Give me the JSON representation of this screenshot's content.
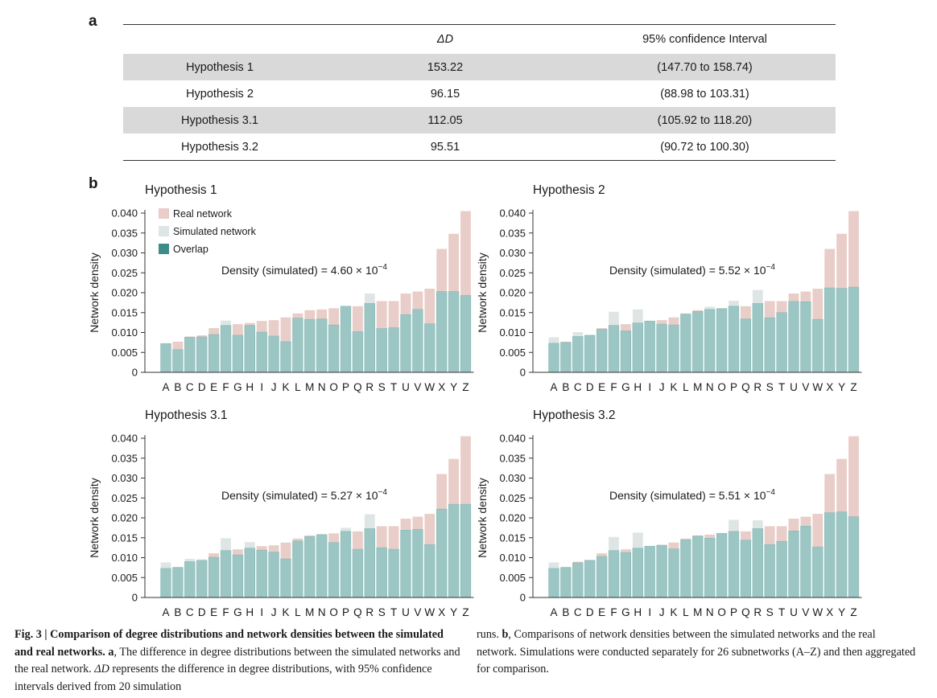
{
  "panel_a_letter": "a",
  "panel_b_letter": "b",
  "table": {
    "headers": [
      "",
      "ΔD",
      "95% confidence Interval"
    ],
    "rows": [
      [
        "Hypothesis 1",
        "153.22",
        "(147.70 to 158.74)"
      ],
      [
        "Hypothesis 2",
        "96.15",
        "(88.98 to 103.31)"
      ],
      [
        "Hypothesis 3.1",
        "112.05",
        "(105.92 to 118.20)"
      ],
      [
        "Hypothesis 3.2",
        "95.51",
        "(90.72 to 100.30)"
      ]
    ]
  },
  "legend": {
    "real": "Real network",
    "simulated": "Simulated network",
    "overlap": "Overlap"
  },
  "colors": {
    "real": "#e8cdc8",
    "simulated": "#dfe5e5",
    "overlap": "#9bc6c4",
    "overlap_legend": "#3d8c8a"
  },
  "ylabel": "Network density",
  "yticks": [
    "0",
    "0.005",
    "0.010",
    "0.015",
    "0.020",
    "0.025",
    "0.030",
    "0.035",
    "0.040"
  ],
  "chart_data": [
    {
      "type": "bar",
      "title": "Hypothesis 1",
      "annotation": "Density (simulated) = 4.60 × 10",
      "annotation_exp": "−4",
      "ylabel": "Network density",
      "ylim": [
        0,
        0.042
      ],
      "categories": [
        "A",
        "B",
        "C",
        "D",
        "E",
        "F",
        "G",
        "H",
        "I",
        "J",
        "K",
        "L",
        "M",
        "N",
        "O",
        "P",
        "Q",
        "R",
        "S",
        "T",
        "U",
        "V",
        "W",
        "X",
        "Y",
        "Z"
      ],
      "series": [
        {
          "name": "Real network",
          "values": [
            0.0073,
            0.0077,
            0.009,
            0.0093,
            0.0111,
            0.0118,
            0.0121,
            0.0124,
            0.0129,
            0.0131,
            0.0138,
            0.0148,
            0.0156,
            0.0158,
            0.0161,
            0.0166,
            0.0166,
            0.0173,
            0.0179,
            0.0179,
            0.0198,
            0.0203,
            0.021,
            0.031,
            0.0348,
            0.0405
          ]
        },
        {
          "name": "Simulated network",
          "values": [
            0.0072,
            0.0057,
            0.0088,
            0.0089,
            0.0095,
            0.013,
            0.0093,
            0.0118,
            0.0101,
            0.0091,
            0.0077,
            0.0136,
            0.0133,
            0.0134,
            0.0119,
            0.0166,
            0.0102,
            0.0198,
            0.011,
            0.0112,
            0.0145,
            0.0158,
            0.0122,
            0.0203,
            0.0203,
            0.0193
          ]
        }
      ]
    },
    {
      "type": "bar",
      "title": "Hypothesis 2",
      "annotation": "Density (simulated) = 5.52 × 10",
      "annotation_exp": "−4",
      "ylabel": "Network density",
      "ylim": [
        0,
        0.042
      ],
      "categories": [
        "A",
        "B",
        "C",
        "D",
        "E",
        "F",
        "G",
        "H",
        "I",
        "J",
        "K",
        "L",
        "M",
        "N",
        "O",
        "P",
        "Q",
        "R",
        "S",
        "T",
        "U",
        "V",
        "W",
        "X",
        "Y",
        "Z"
      ],
      "series": [
        {
          "name": "Real network",
          "values": [
            0.0073,
            0.0077,
            0.009,
            0.0093,
            0.0111,
            0.0118,
            0.0121,
            0.0124,
            0.0129,
            0.0131,
            0.0138,
            0.0148,
            0.0156,
            0.0158,
            0.0161,
            0.0166,
            0.0166,
            0.0173,
            0.0179,
            0.0179,
            0.0198,
            0.0203,
            0.021,
            0.031,
            0.0348,
            0.0405
          ]
        },
        {
          "name": "Simulated network",
          "values": [
            0.0088,
            0.0075,
            0.0101,
            0.0094,
            0.0108,
            0.0152,
            0.0104,
            0.0158,
            0.0129,
            0.0121,
            0.0119,
            0.0146,
            0.0153,
            0.0165,
            0.016,
            0.018,
            0.0134,
            0.0207,
            0.0137,
            0.015,
            0.0178,
            0.0177,
            0.0133,
            0.0212,
            0.0211,
            0.0214
          ]
        }
      ]
    },
    {
      "type": "bar",
      "title": "Hypothesis 3.1",
      "annotation": "Density (simulated) = 5.27 × 10",
      "annotation_exp": "−4",
      "ylabel": "Network density",
      "ylim": [
        0,
        0.042
      ],
      "categories": [
        "A",
        "B",
        "C",
        "D",
        "E",
        "F",
        "G",
        "H",
        "I",
        "J",
        "K",
        "L",
        "M",
        "N",
        "O",
        "P",
        "Q",
        "R",
        "S",
        "T",
        "U",
        "V",
        "W",
        "X",
        "Y",
        "Z"
      ],
      "series": [
        {
          "name": "Real network",
          "values": [
            0.0073,
            0.0077,
            0.009,
            0.0093,
            0.0111,
            0.0118,
            0.0121,
            0.0124,
            0.0129,
            0.0131,
            0.0138,
            0.0148,
            0.0156,
            0.0158,
            0.0161,
            0.0166,
            0.0166,
            0.0173,
            0.0179,
            0.0179,
            0.0198,
            0.0203,
            0.021,
            0.031,
            0.0348,
            0.0405
          ]
        },
        {
          "name": "Simulated network",
          "values": [
            0.0088,
            0.0075,
            0.0097,
            0.0096,
            0.0101,
            0.0149,
            0.0107,
            0.0139,
            0.0119,
            0.0114,
            0.0097,
            0.0142,
            0.0153,
            0.0159,
            0.0138,
            0.0175,
            0.0121,
            0.0209,
            0.0125,
            0.0121,
            0.0169,
            0.0171,
            0.0133,
            0.0222,
            0.0234,
            0.0234
          ]
        }
      ]
    },
    {
      "type": "bar",
      "title": "Hypothesis 3.2",
      "annotation": "Density (simulated) = 5.51 × 10",
      "annotation_exp": "−4",
      "ylabel": "Network density",
      "ylim": [
        0,
        0.042
      ],
      "categories": [
        "A",
        "B",
        "C",
        "D",
        "E",
        "F",
        "G",
        "H",
        "I",
        "J",
        "K",
        "L",
        "M",
        "N",
        "O",
        "P",
        "Q",
        "R",
        "S",
        "T",
        "U",
        "V",
        "W",
        "X",
        "Y",
        "Z"
      ],
      "series": [
        {
          "name": "Real network",
          "values": [
            0.0073,
            0.0077,
            0.009,
            0.0093,
            0.0111,
            0.0118,
            0.0121,
            0.0124,
            0.0129,
            0.0131,
            0.0138,
            0.0148,
            0.0156,
            0.0158,
            0.0161,
            0.0166,
            0.0166,
            0.0173,
            0.0179,
            0.0179,
            0.0198,
            0.0203,
            0.021,
            0.031,
            0.0348,
            0.0405
          ]
        },
        {
          "name": "Simulated network",
          "values": [
            0.0088,
            0.0075,
            0.0087,
            0.0095,
            0.0103,
            0.0152,
            0.0113,
            0.0163,
            0.0129,
            0.0133,
            0.0122,
            0.0145,
            0.0154,
            0.0149,
            0.0162,
            0.0195,
            0.0144,
            0.0194,
            0.0133,
            0.0141,
            0.0167,
            0.0179,
            0.0127,
            0.0213,
            0.0215,
            0.0203
          ]
        }
      ]
    }
  ],
  "caption": {
    "left_bold": "Fig. 3 | Comparison of degree distributions and network densities between the simulated and real networks.",
    "left_a_label": "a",
    "left_a_text": ", The difference in degree distributions between the simulated networks and the real network. ",
    "left_delta": "ΔD",
    "left_after_delta": " represents the difference in degree distributions, with 95% confidence intervals derived from 20 simulation",
    "right_start": "runs. ",
    "right_b_label": "b",
    "right_b_text": ", Comparisons of network densities between the simulated networks and the real network. Simulations were conducted separately for 26 subnetworks (A–Z) and then aggregated for comparison."
  }
}
